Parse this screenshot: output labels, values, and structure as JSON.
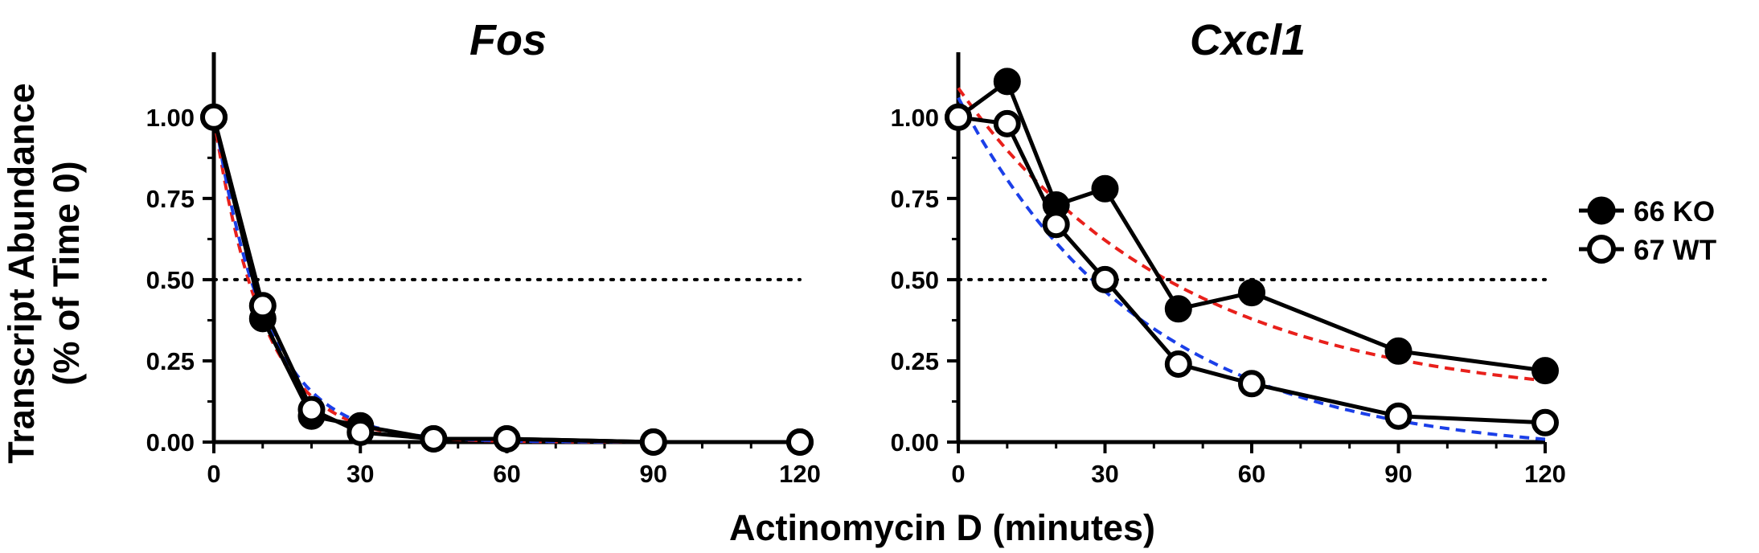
{
  "ylabel_line1": "Transcript Abundance",
  "ylabel_line2": "(% of Time 0)",
  "xlabel": "Actinomycin D (minutes)",
  "legend": [
    {
      "label": "66 KO",
      "marker": "filled"
    },
    {
      "label": "67 WT",
      "marker": "open"
    }
  ],
  "colors": {
    "fit_ko": "#e8201b",
    "fit_wt": "#1b3fe8",
    "data": "#000000"
  },
  "chart_data": [
    {
      "type": "line",
      "title": "Fos",
      "xlim": [
        0,
        120
      ],
      "ylim": [
        0,
        1.2
      ],
      "xticks": [
        "0",
        "30",
        "60",
        "90",
        "120"
      ],
      "yticks": [
        "0.00",
        "0.25",
        "0.50",
        "0.75",
        "1.00"
      ],
      "x": [
        0,
        10,
        20,
        30,
        45,
        60,
        90,
        120
      ],
      "series": [
        {
          "name": "66 KO",
          "marker": "filled",
          "values": [
            1.0,
            0.38,
            0.08,
            0.05,
            0.01,
            0.01,
            0.0,
            0.0
          ]
        },
        {
          "name": "67 WT",
          "marker": "open",
          "values": [
            1.0,
            0.42,
            0.1,
            0.03,
            0.01,
            0.01,
            0.0,
            0.0
          ]
        }
      ],
      "fits": [
        {
          "series": "66 KO",
          "style": "dashed",
          "color": "#e8201b",
          "y0": 1.0,
          "k": 0.098,
          "plateau": 0.0
        },
        {
          "series": "67 WT",
          "style": "dashed",
          "color": "#1b3fe8",
          "y0": 1.02,
          "k": 0.094,
          "plateau": 0.0
        }
      ],
      "reference_line": {
        "y": 0.5,
        "style": "dotted"
      }
    },
    {
      "type": "line",
      "title": "Cxcl1",
      "xlim": [
        0,
        120
      ],
      "ylim": [
        0,
        1.2
      ],
      "xticks": [
        "0",
        "30",
        "60",
        "90",
        "120"
      ],
      "yticks": [
        "0.00",
        "0.25",
        "0.50",
        "0.75",
        "1.00"
      ],
      "x": [
        0,
        10,
        20,
        30,
        45,
        60,
        90,
        120
      ],
      "series": [
        {
          "name": "66 KO",
          "marker": "filled",
          "values": [
            1.0,
            1.11,
            0.73,
            0.78,
            0.41,
            0.46,
            0.28,
            0.22
          ]
        },
        {
          "name": "67 WT",
          "marker": "open",
          "values": [
            1.0,
            0.98,
            0.67,
            0.5,
            0.24,
            0.18,
            0.08,
            0.06
          ]
        }
      ],
      "fits": [
        {
          "series": "66 KO",
          "style": "dashed",
          "color": "#e8201b",
          "y0": 1.09,
          "k": 0.022,
          "plateau": 0.12
        },
        {
          "series": "67 WT",
          "style": "dashed",
          "color": "#1b3fe8",
          "y0": 1.06,
          "k": 0.026,
          "plateau": -0.04
        }
      ],
      "reference_line": {
        "y": 0.5,
        "style": "dotted"
      }
    }
  ]
}
